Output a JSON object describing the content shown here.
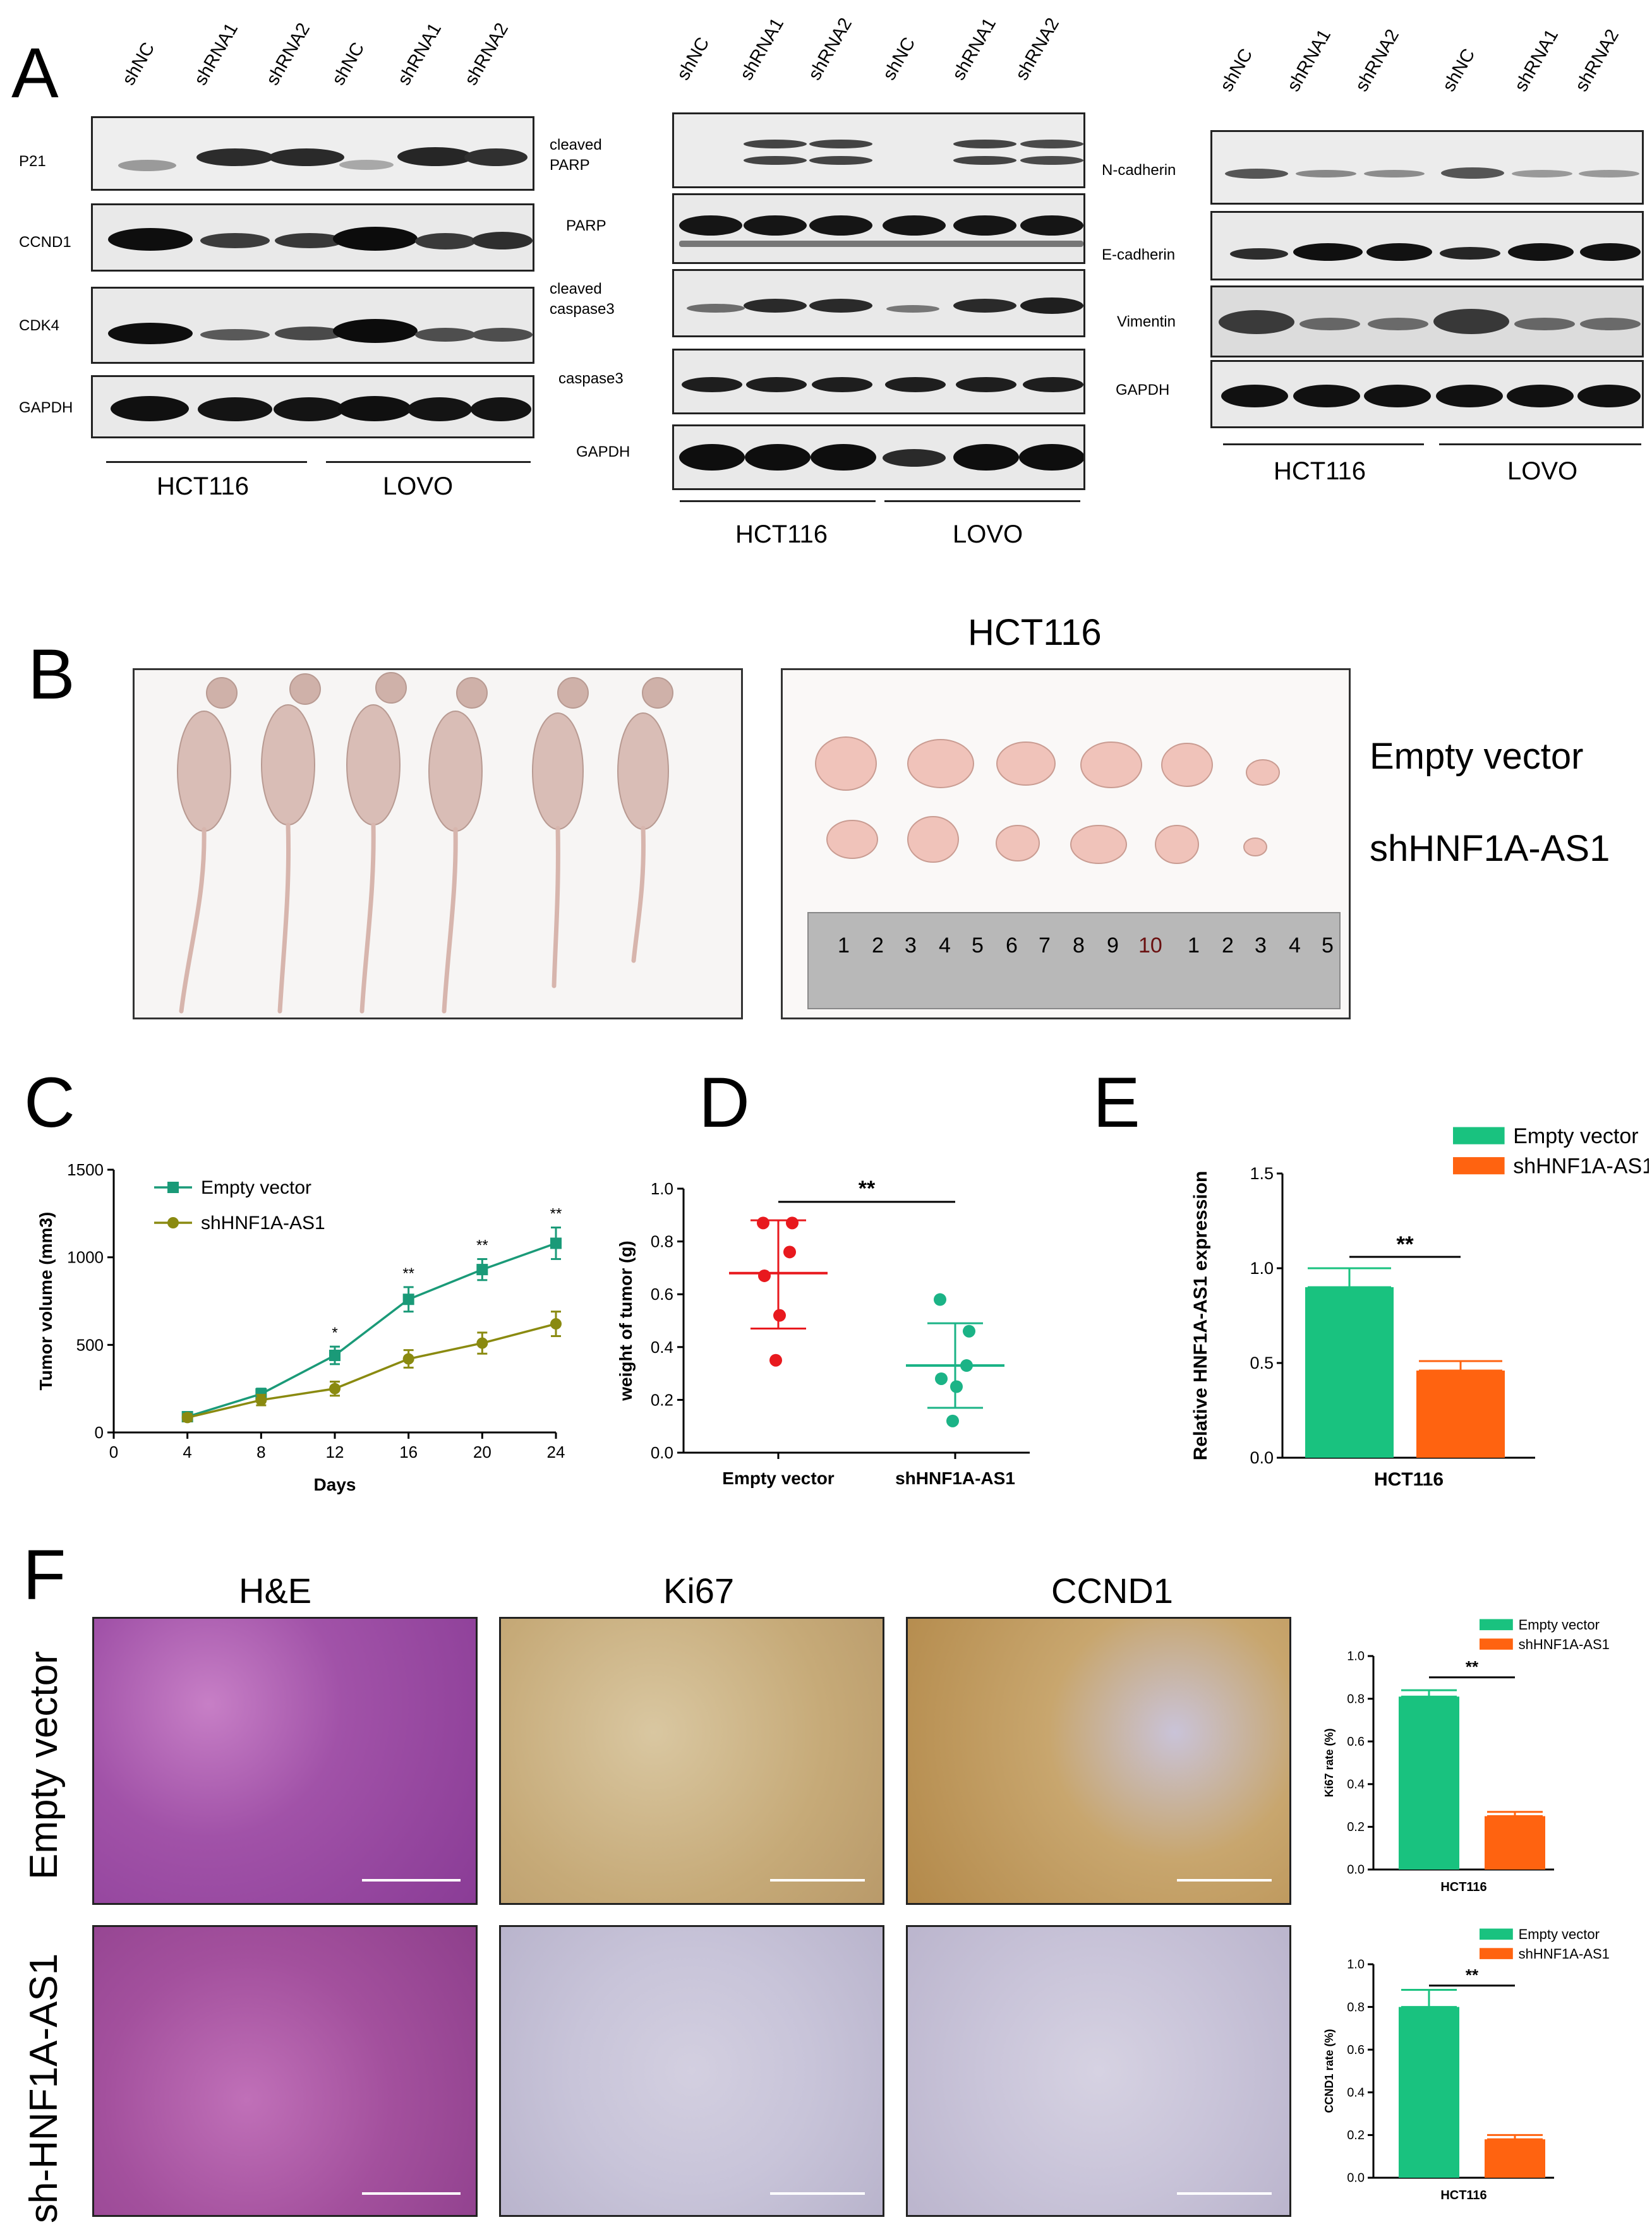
{
  "panel_letters": {
    "a": "A",
    "b": "B",
    "c": "C",
    "d": "D",
    "e": "E",
    "f": "F"
  },
  "panel_a": {
    "lanes": [
      "shNC",
      "shRNA1",
      "shRNA2",
      "shNC",
      "shRNA1",
      "shRNA2"
    ],
    "blot1_labels": [
      "P21",
      "CCND1",
      "CDK4",
      "GAPDH"
    ],
    "blot2_labels": [
      "cleaved PARP",
      "PARP",
      "cleaved caspase3",
      "caspase3",
      "GAPDH"
    ],
    "blot3_labels": [
      "N-cadherin",
      "E-cadherin",
      "Vimentin",
      "GAPDH"
    ],
    "cell_lines": [
      "HCT116",
      "LOVO"
    ]
  },
  "panel_b": {
    "title": "HCT116",
    "row_labels": [
      "Empty vector",
      "shHNF1A-AS1"
    ],
    "ruler_numbers": [
      "1",
      "2",
      "3",
      "4",
      "5",
      "6",
      "7",
      "8",
      "9",
      "10",
      "1",
      "2",
      "3",
      "4",
      "5"
    ]
  },
  "panel_f": {
    "columns": [
      "H&E",
      "Ki67",
      "CCND1"
    ],
    "rows": [
      "Empty vector",
      "sh-HNF1A-AS1"
    ]
  },
  "chart_data": [
    {
      "id": "C",
      "type": "line",
      "xlabel": "Days",
      "ylabel": "Tumor volume (mm3)",
      "x": [
        4,
        8,
        12,
        16,
        20,
        24
      ],
      "xlim": [
        0,
        24
      ],
      "ylim": [
        0,
        1500
      ],
      "xticks": [
        "0",
        "4",
        "8",
        "12",
        "16",
        "20",
        "24"
      ],
      "yticks": [
        "0",
        "500",
        "1000",
        "1500"
      ],
      "legend": "top-left",
      "series": [
        {
          "name": "Empty vector",
          "color": "#1a9a78",
          "marker": "square",
          "values": [
            90,
            220,
            440,
            760,
            930,
            1080
          ],
          "errors": [
            20,
            30,
            50,
            70,
            60,
            90
          ]
        },
        {
          "name": "shHNF1A-AS1",
          "color": "#8a8a10",
          "marker": "circle",
          "values": [
            85,
            185,
            250,
            420,
            510,
            620
          ],
          "errors": [
            20,
            30,
            40,
            50,
            60,
            70
          ]
        }
      ],
      "annotations": [
        {
          "x": 12,
          "text": "*"
        },
        {
          "x": 16,
          "text": "**"
        },
        {
          "x": 20,
          "text": "**"
        },
        {
          "x": 24,
          "text": "**"
        }
      ]
    },
    {
      "id": "D",
      "type": "scatter",
      "ylabel": "weight of tumor (g)",
      "categories": [
        "Empty vector",
        "shHNF1A-AS1"
      ],
      "ylim": [
        0,
        1.0
      ],
      "yticks": [
        "0.0",
        "0.2",
        "0.4",
        "0.6",
        "0.8",
        "1.0"
      ],
      "series": [
        {
          "name": "Empty vector",
          "color": "#e8191e",
          "points": [
            0.87,
            0.87,
            0.76,
            0.67,
            0.52,
            0.35
          ],
          "mean": 0.68,
          "sd_low": 0.47,
          "sd_high": 0.88
        },
        {
          "name": "shHNF1A-AS1",
          "color": "#1bb386",
          "points": [
            0.58,
            0.46,
            0.33,
            0.28,
            0.25,
            0.12
          ],
          "mean": 0.33,
          "sd_low": 0.17,
          "sd_high": 0.49
        }
      ],
      "significance": "**"
    },
    {
      "id": "E",
      "type": "bar",
      "ylabel": "Relative HNF1A-AS1 expression",
      "xlabel": "HCT116",
      "ylim": [
        0,
        1.5
      ],
      "yticks": [
        "0.0",
        "0.5",
        "1.0",
        "1.5"
      ],
      "legend": "top-right",
      "series": [
        {
          "name": "Empty vector",
          "color": "#19c27f",
          "value": 0.9,
          "error": 0.1
        },
        {
          "name": "shHNF1A-AS1",
          "color": "#ff6310",
          "value": 0.46,
          "error": 0.05
        }
      ],
      "significance": "**"
    },
    {
      "id": "F-Ki67",
      "type": "bar",
      "ylabel": "Ki67 rate (%)",
      "xlabel": "HCT116",
      "ylim": [
        0,
        1.0
      ],
      "yticks": [
        "0.0",
        "0.2",
        "0.4",
        "0.6",
        "0.8",
        "1.0"
      ],
      "legend": "top-right",
      "series": [
        {
          "name": "Empty vector",
          "color": "#19c27f",
          "value": 0.81,
          "error": 0.03
        },
        {
          "name": "shHNF1A-AS1",
          "color": "#ff6310",
          "value": 0.25,
          "error": 0.02
        }
      ],
      "significance": "**"
    },
    {
      "id": "F-CCND1",
      "type": "bar",
      "ylabel": "CCND1 rate (%)",
      "xlabel": "HCT116",
      "ylim": [
        0,
        1.0
      ],
      "yticks": [
        "0.0",
        "0.2",
        "0.4",
        "0.6",
        "0.8",
        "1.0"
      ],
      "legend": "top-right",
      "series": [
        {
          "name": "Empty vector",
          "color": "#19c27f",
          "value": 0.8,
          "error": 0.08
        },
        {
          "name": "shHNF1A-AS1",
          "color": "#ff6310",
          "value": 0.18,
          "error": 0.02
        }
      ],
      "significance": "**"
    }
  ]
}
